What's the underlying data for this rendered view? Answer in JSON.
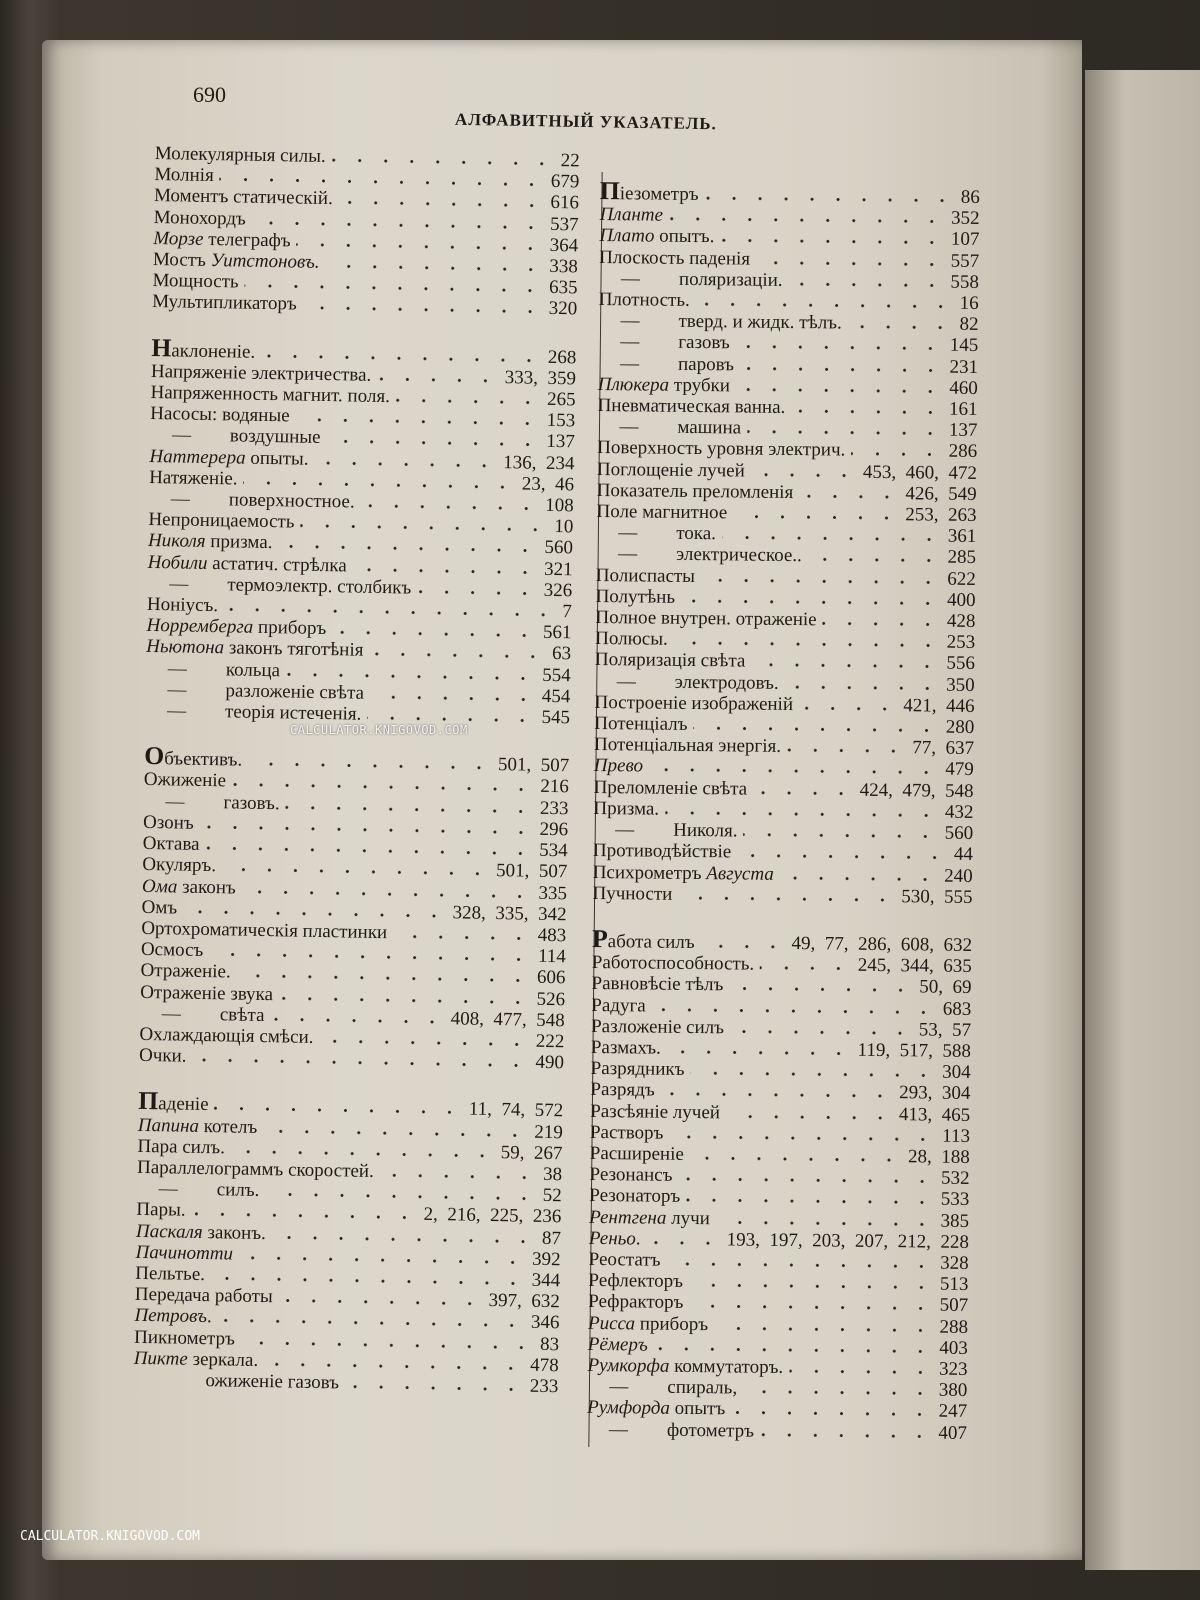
{
  "page_number": "690",
  "running_head": "АЛФАВИТНЫЙ УКАЗАТЕЛЬ.",
  "watermark": "CALCULATOR.KNIGOVOD.COM",
  "columns": [
    {
      "sections": [
        {
          "cont": true,
          "entries": [
            {
              "t": "Молекулярныя силы.",
              "p": "22"
            },
            {
              "t": "Молнія",
              "p": "679"
            },
            {
              "t": "Моментъ статическій.",
              "p": "616"
            },
            {
              "t": "Монохордъ",
              "p": "537"
            },
            {
              "it": "Морзе",
              "t": " телеграфъ",
              "p": "364"
            },
            {
              "t": "Мостъ ",
              "it2": "Уитстоновъ.",
              "p": "338"
            },
            {
              "t": "Мощность",
              "p": "635"
            },
            {
              "t": "Мультипликаторъ",
              "p": "320"
            }
          ]
        },
        {
          "entries": [
            {
              "t": "Наклоненіе.",
              "p": "268"
            },
            {
              "t": "Напряженіе электричества.",
              "p": "333,  359"
            },
            {
              "t": "Напряженность магнит. поля.",
              "p": "265"
            },
            {
              "t": "Насосы: водяные",
              "p": "153"
            },
            {
              "dash": true,
              "t": "воздушные",
              "p": "137"
            },
            {
              "it": "Наттерера",
              "t": " опыты.",
              "p": "136,  234"
            },
            {
              "t": "Натяженіе.",
              "p": "23,  46"
            },
            {
              "dash": true,
              "t": "поверхностное.",
              "p": "108"
            },
            {
              "t": "Непроницаемость",
              "p": "10"
            },
            {
              "it": "Николя",
              "t": " призма.",
              "p": "560"
            },
            {
              "it": "Нобили",
              "t": " астатич. стрѣлка",
              "p": "321"
            },
            {
              "dash": true,
              "t": "термоэлектр. столбикъ",
              "p": "326"
            },
            {
              "t": "Ноніусъ.",
              "p": "7"
            },
            {
              "it": "Норремберга",
              "t": " приборъ",
              "p": "561"
            },
            {
              "it": "Ньютона",
              "t": " законъ тяготѣнія",
              "p": "63"
            },
            {
              "dash": true,
              "t": "кольца",
              "p": "554"
            },
            {
              "dash": true,
              "t": "разложеніе свѣта",
              "p": "454"
            },
            {
              "dash": true,
              "t": "теорія истеченія.",
              "p": "545"
            }
          ]
        },
        {
          "entries": [
            {
              "t": "Объективъ.",
              "p": "501,  507"
            },
            {
              "t": "Ожиженіе",
              "p": "216"
            },
            {
              "dash": true,
              "t": "газовъ.",
              "p": "233"
            },
            {
              "t": "Озонъ",
              "p": "296"
            },
            {
              "t": "Октава",
              "p": "534"
            },
            {
              "t": "Окуляръ.",
              "p": "501,  507"
            },
            {
              "it": "Ома",
              "t": " законъ",
              "p": "335"
            },
            {
              "t": "Омъ",
              "p": "328,  335,  342"
            },
            {
              "t": "Ортохроматическія пластинки",
              "p": "483"
            },
            {
              "t": "Осмосъ",
              "p": "114"
            },
            {
              "t": "Отраженіе.",
              "p": "606"
            },
            {
              "t": "Отраженіе звука",
              "p": "526"
            },
            {
              "dash": true,
              "t": "свѣта",
              "p": "408,  477,  548"
            },
            {
              "t": "Охлаждающія смѣси.",
              "p": "222"
            },
            {
              "t": "Очки.",
              "p": "490"
            }
          ]
        },
        {
          "entries": [
            {
              "t": "Паденіе",
              "p": "11,  74,  572"
            },
            {
              "it": "Папина",
              "t": " котелъ",
              "p": "219"
            },
            {
              "t": "Пара силъ.",
              "p": "59,  267"
            },
            {
              "t": "Параллелограммъ скоростей.",
              "p": "38"
            },
            {
              "dash": true,
              "t": "силъ.",
              "p": "52"
            },
            {
              "t": "Пары.",
              "p": "2,  216,  225,  236"
            },
            {
              "it": "Паскаля",
              "t": " законъ.",
              "p": "87"
            },
            {
              "it": "Пачинотти",
              "t": "",
              "p": "392"
            },
            {
              "t": "Пельтье.",
              "p": "344"
            },
            {
              "t": "Передача работы",
              "p": "397,  632"
            },
            {
              "it": "Петровъ",
              "t": ".",
              "p": "346"
            },
            {
              "t": "Пикнометръ",
              "p": "83"
            },
            {
              "it": "Пикте",
              "t": " зеркала.",
              "p": "478"
            },
            {
              "indent": true,
              "t": "ожиженіе газовъ",
              "p": "233"
            }
          ]
        }
      ]
    },
    {
      "sections": [
        {
          "entries": [
            {
              "t": "Піезометръ",
              "p": "86"
            },
            {
              "it": "Планте",
              "t": "",
              "p": "352"
            },
            {
              "it": "Плато",
              "t": " опытъ.",
              "p": "107"
            },
            {
              "t": "Плоскость паденія",
              "p": "557"
            },
            {
              "dash": true,
              "t": "поляризаціи.",
              "p": "558"
            },
            {
              "t": "Плотность.",
              "p": "16"
            },
            {
              "dash": true,
              "t": "тверд. и жидк. тѣлъ.",
              "p": "82"
            },
            {
              "dash": true,
              "t": "газовъ",
              "p": "145"
            },
            {
              "dash": true,
              "t": "паровъ",
              "p": "231"
            },
            {
              "it": "Плюкера",
              "t": " трубки",
              "p": "460"
            },
            {
              "t": "Пневматическая ванна.",
              "p": "161"
            },
            {
              "dash": true,
              "t": "машина",
              "p": "137"
            },
            {
              "t": "Поверхность уровня электрич.",
              "p": "286"
            },
            {
              "t": "Поглощеніе лучей",
              "p": "453,  460,  472"
            },
            {
              "t": "Показатель преломленія",
              "p": "426,  549"
            },
            {
              "t": "Поле магнитное",
              "p": "253,  263"
            },
            {
              "dash": true,
              "t": "тока.",
              "p": "361"
            },
            {
              "dash": true,
              "t": "электрическое..",
              "p": "285"
            },
            {
              "t": "Полиспасты",
              "p": "622"
            },
            {
              "t": "Полутѣнь",
              "p": "400"
            },
            {
              "t": "Полное внутрен. отраженіе",
              "p": "428"
            },
            {
              "t": "Полюсы.",
              "p": "253"
            },
            {
              "t": "Поляризація свѣта",
              "p": "556"
            },
            {
              "dash": true,
              "t": "электродовъ.",
              "p": "350"
            },
            {
              "t": "Построеніе изображеній",
              "p": "421,  446"
            },
            {
              "t": "Потенціалъ",
              "p": "280"
            },
            {
              "t": "Потенціальная энергія.",
              "p": "77,  637"
            },
            {
              "it": "Прево",
              "t": "",
              "p": "479"
            },
            {
              "t": "Преломленіе свѣта",
              "p": "424,  479,  548"
            },
            {
              "t": "Призма.",
              "p": "432"
            },
            {
              "dash": true,
              "t": "Николя.",
              "p": "560"
            },
            {
              "t": "Противодѣйствіе",
              "p": "44"
            },
            {
              "t": "Психрометръ ",
              "it2": "Августа",
              "p": "240"
            },
            {
              "t": "Пучности",
              "p": "530,  555"
            }
          ]
        },
        {
          "entries": [
            {
              "t": "Работа силъ",
              "p": "49,  77,  286,  608,  632"
            },
            {
              "t": "Работоспособность.",
              "p": "245,  344,  635"
            },
            {
              "t": "Равновѣсіе тѣлъ",
              "p": "50,  69"
            },
            {
              "t": "Радуга",
              "p": "683"
            },
            {
              "t": "Разложеніе силъ",
              "p": "53,  57"
            },
            {
              "t": "Размахъ.",
              "p": "119,  517,  588"
            },
            {
              "t": "Разрядникъ",
              "p": "304"
            },
            {
              "t": "Разрядъ",
              "p": "293,  304"
            },
            {
              "t": "Разсѣяніе лучей",
              "p": "413,  465"
            },
            {
              "t": "Растворъ",
              "p": "113"
            },
            {
              "t": "Расширеніе",
              "p": "28,  188"
            },
            {
              "t": "Резонансъ",
              "p": "532"
            },
            {
              "t": "Резонаторъ",
              "p": "533"
            },
            {
              "it": "Рентгена",
              "t": " лучи",
              "p": "385"
            },
            {
              "it": "Реньо",
              "t": ".",
              "p": "193,  197,  203,  207,  212,  228"
            },
            {
              "t": "Реостатъ",
              "p": "328"
            },
            {
              "t": "Рефлекторъ",
              "p": "513"
            },
            {
              "t": "Рефракторъ",
              "p": "507"
            },
            {
              "it": "Рисса",
              "t": " приборъ",
              "p": "288"
            },
            {
              "it": "Рёмеръ",
              "t": "",
              "p": "403"
            },
            {
              "it": "Румкорфа",
              "t": " коммутаторъ.",
              "p": "323"
            },
            {
              "dash": true,
              "t": "спираль,",
              "p": "380"
            },
            {
              "it": "Румфорда",
              "t": " опытъ",
              "p": "247"
            },
            {
              "dash": true,
              "t": "фотометръ",
              "p": "407"
            }
          ]
        }
      ]
    }
  ]
}
